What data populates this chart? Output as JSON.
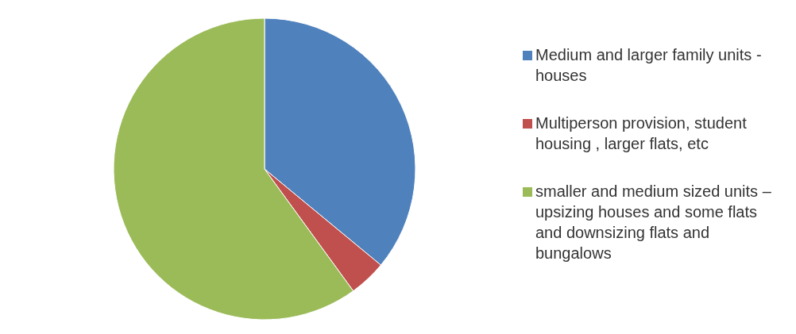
{
  "chart_data": {
    "type": "pie",
    "categories": [
      "Medium and larger family units - houses",
      "Multiperson provision, student housing , larger flats, etc",
      "smaller and medium sized units –upsizing houses and some flats and downsizing flats and bungalows"
    ],
    "values": [
      36,
      4,
      60
    ],
    "colors": [
      "#4f81bd",
      "#c0504d",
      "#9bbb59"
    ],
    "legend": "right"
  }
}
